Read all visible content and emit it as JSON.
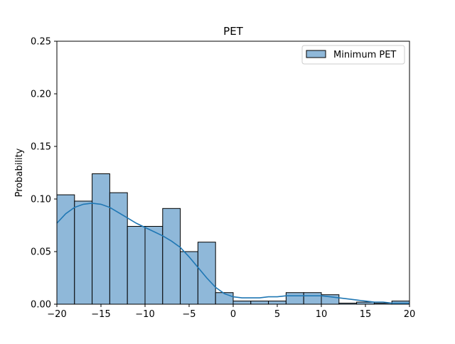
{
  "chart_data": {
    "type": "bar",
    "subtype": "histogram-with-kde",
    "title": "PET",
    "xlabel": "",
    "ylabel": "Probability",
    "xlim": [
      -20,
      20
    ],
    "ylim": [
      0,
      0.25
    ],
    "xticks": [
      -20,
      -15,
      -10,
      -5,
      0,
      5,
      10,
      15,
      20
    ],
    "xtick_labels": [
      "−20",
      "−15",
      "−10",
      "−5",
      "0",
      "5",
      "10",
      "15",
      "20"
    ],
    "yticks": [
      0,
      0.05,
      0.1,
      0.15,
      0.2,
      0.25
    ],
    "ytick_labels": [
      "0.00",
      "0.05",
      "0.10",
      "0.15",
      "0.20",
      "0.25"
    ],
    "grid": false,
    "legend": {
      "position": "top-right",
      "entries": [
        "Minimum PET"
      ]
    },
    "series": [
      {
        "name": "Minimum PET",
        "color": "#1f77b4",
        "bar_fill": "#8fb8d9",
        "bin_edges": [
          -20,
          -18,
          -16,
          -14,
          -12,
          -10,
          -8,
          -6,
          -4,
          -2,
          0,
          2,
          4,
          6,
          8,
          10,
          12,
          14,
          16,
          18,
          20
        ],
        "values": [
          0.104,
          0.098,
          0.124,
          0.106,
          0.074,
          0.074,
          0.091,
          0.05,
          0.059,
          0.011,
          0.003,
          0.003,
          0.003,
          0.011,
          0.011,
          0.009,
          0.001,
          0.002,
          0.001,
          0.003
        ],
        "kde": {
          "x": [
            -20,
            -19,
            -18,
            -17,
            -16,
            -15,
            -14,
            -13,
            -12,
            -11,
            -10,
            -9,
            -8,
            -7,
            -6,
            -5,
            -4,
            -3,
            -2,
            -1,
            0,
            1,
            2,
            3,
            4,
            5,
            6,
            7,
            8,
            9,
            10,
            11,
            12,
            13,
            14,
            15,
            16,
            17,
            18,
            19,
            20
          ],
          "y": [
            0.077,
            0.086,
            0.092,
            0.095,
            0.096,
            0.095,
            0.092,
            0.087,
            0.082,
            0.077,
            0.073,
            0.069,
            0.065,
            0.06,
            0.054,
            0.045,
            0.035,
            0.025,
            0.016,
            0.01,
            0.007,
            0.006,
            0.006,
            0.006,
            0.007,
            0.007,
            0.008,
            0.008,
            0.008,
            0.008,
            0.008,
            0.007,
            0.006,
            0.005,
            0.004,
            0.003,
            0.002,
            0.002,
            0.001,
            0.001,
            0.001
          ]
        }
      }
    ]
  }
}
